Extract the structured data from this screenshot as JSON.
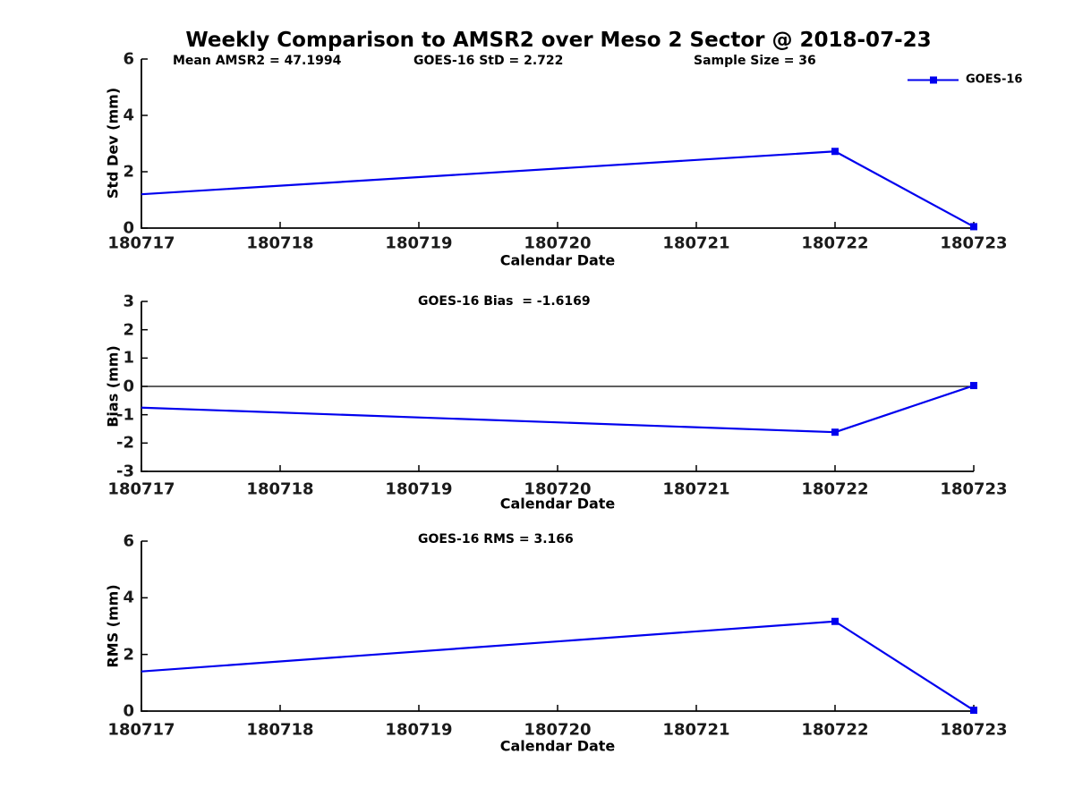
{
  "figure": {
    "title": "Weekly Comparison to AMSR2 over Meso 2 Sector @ 2018-07-23",
    "background": "#ffffff"
  },
  "legend": {
    "label": "GOES-16",
    "color": "#0000EE",
    "marker": "square",
    "position": "upper-right-of-first-subplot"
  },
  "chart_data": [
    {
      "type": "line",
      "ylabel": "Std Dev (mm)",
      "xlabel": "Calendar Date",
      "x_categories": [
        "180717",
        "180718",
        "180719",
        "180720",
        "180721",
        "180722",
        "180723"
      ],
      "ylim": [
        0,
        6
      ],
      "yticks": [
        0,
        2,
        4,
        6
      ],
      "grid": false,
      "zero_line": false,
      "annotations": [
        "Mean AMSR2 = 47.1994",
        "GOES-16 StD = 2.722",
        "Sample Size = 36"
      ],
      "series": [
        {
          "name": "GOES-16",
          "color": "#0000EE",
          "marker": "square",
          "x": [
            "180717",
            "180722",
            "180723"
          ],
          "y": [
            1.2,
            2.722,
            0.05
          ],
          "marker_visible": [
            false,
            true,
            true
          ]
        }
      ]
    },
    {
      "type": "line",
      "ylabel": "Bias (mm)",
      "xlabel": "Calendar Date",
      "x_categories": [
        "180717",
        "180718",
        "180719",
        "180720",
        "180721",
        "180722",
        "180723"
      ],
      "ylim": [
        -3,
        3
      ],
      "yticks": [
        -3,
        -2,
        -1,
        0,
        1,
        2,
        3
      ],
      "grid": false,
      "zero_line": true,
      "annotations": [
        "GOES-16 Bias  = -1.6169"
      ],
      "series": [
        {
          "name": "GOES-16",
          "color": "#0000EE",
          "marker": "square",
          "x": [
            "180717",
            "180722",
            "180723"
          ],
          "y": [
            -0.75,
            -1.6169,
            0.03
          ],
          "marker_visible": [
            false,
            true,
            true
          ]
        }
      ]
    },
    {
      "type": "line",
      "ylabel": "RMS (mm)",
      "xlabel": "Calendar Date",
      "x_categories": [
        "180717",
        "180718",
        "180719",
        "180720",
        "180721",
        "180722",
        "180723"
      ],
      "ylim": [
        0,
        6
      ],
      "yticks": [
        0,
        2,
        4,
        6
      ],
      "grid": false,
      "zero_line": false,
      "annotations": [
        "GOES-16 RMS = 3.166"
      ],
      "series": [
        {
          "name": "GOES-16",
          "color": "#0000EE",
          "marker": "square",
          "x": [
            "180717",
            "180722",
            "180723"
          ],
          "y": [
            1.4,
            3.166,
            0.03
          ],
          "marker_visible": [
            false,
            true,
            true
          ]
        }
      ]
    }
  ]
}
